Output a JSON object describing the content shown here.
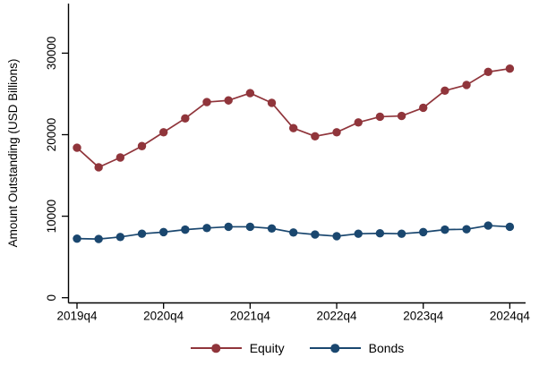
{
  "figure": {
    "background": "#ffffff",
    "axis_color": "#000000"
  },
  "chart_data": {
    "type": "line",
    "title": "",
    "xlabel": "",
    "ylabel": "Amount Outstanding (USD Billions)",
    "x": [
      "2019q4",
      "2020q1",
      "2020q2",
      "2020q3",
      "2020q4",
      "2021q1",
      "2021q2",
      "2021q3",
      "2021q4",
      "2022q1",
      "2022q2",
      "2022q3",
      "2022q4",
      "2023q1",
      "2023q2",
      "2023q3",
      "2023q4",
      "2024q1",
      "2024q2",
      "2024q3",
      "2024q4"
    ],
    "series": [
      {
        "name": "Equity",
        "color": "#90353B",
        "values": [
          18400,
          16000,
          17200,
          18600,
          20300,
          22000,
          24000,
          24200,
          25100,
          23900,
          20800,
          19800,
          20300,
          21500,
          22200,
          22300,
          23300,
          25400,
          26100,
          27700,
          28100
        ]
      },
      {
        "name": "Bonds",
        "color": "#1A476F",
        "values": [
          7250,
          7200,
          7450,
          7850,
          8050,
          8350,
          8550,
          8700,
          8700,
          8500,
          8000,
          7750,
          7550,
          7850,
          7900,
          7850,
          8050,
          8350,
          8400,
          8850,
          8700
        ]
      }
    ],
    "ylim": [
      0,
      36000
    ],
    "yticks": [
      {
        "value": 0,
        "label": "0"
      },
      {
        "value": 10000,
        "label": "10000"
      },
      {
        "value": 20000,
        "label": "20000"
      },
      {
        "value": 30000,
        "label": "30000"
      }
    ],
    "xticks": [
      {
        "index": 0,
        "label": "2019q4"
      },
      {
        "index": 4,
        "label": "2020q4"
      },
      {
        "index": 8,
        "label": "2021q4"
      },
      {
        "index": 12,
        "label": "2022q4"
      },
      {
        "index": 16,
        "label": "2023q4"
      },
      {
        "index": 20,
        "label": "2024q4"
      }
    ],
    "grid": false,
    "legend_position": "bottom"
  },
  "legend": {
    "items": [
      {
        "label": "Equity",
        "color": "#90353B"
      },
      {
        "label": "Bonds",
        "color": "#1A476F"
      }
    ]
  }
}
